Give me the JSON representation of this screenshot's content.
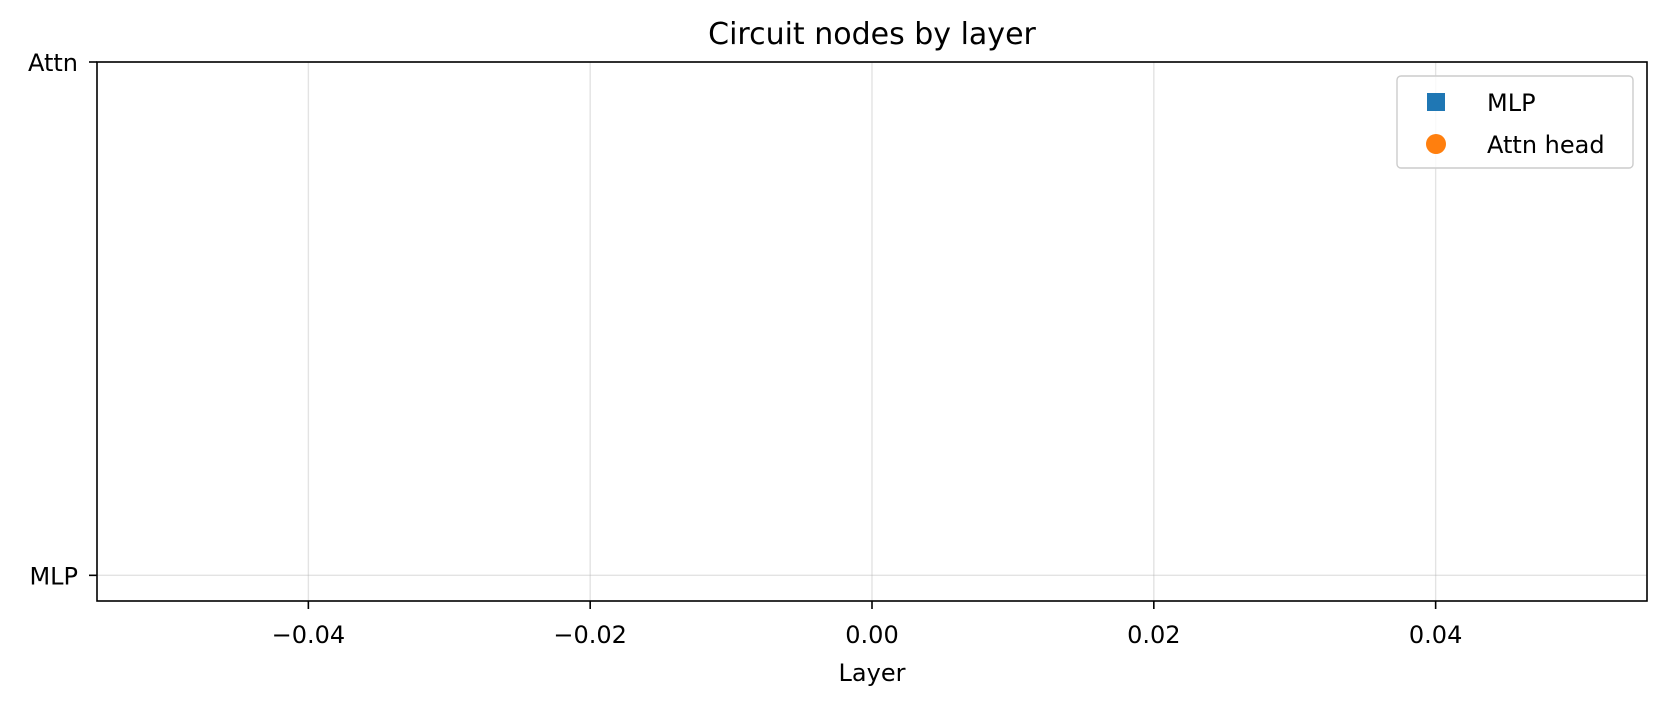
{
  "chart_data": {
    "type": "scatter",
    "title": "Circuit nodes by layer",
    "xlabel": "Layer",
    "ylabel": "",
    "xlim": [
      -0.055,
      0.055
    ],
    "ylim": [
      -0.05,
      1.0
    ],
    "x_ticks": [
      -0.04,
      -0.02,
      0.0,
      0.02,
      0.04
    ],
    "x_tick_labels": [
      "−0.04",
      "−0.02",
      "0.00",
      "0.02",
      "0.04"
    ],
    "y_ticks": [
      0,
      1
    ],
    "y_tick_labels": [
      "MLP",
      "Attn"
    ],
    "grid": true,
    "legend_position": "top-right",
    "series": [
      {
        "name": "MLP",
        "marker": "square",
        "color": "#1f77b4",
        "points": []
      },
      {
        "name": "Attn head",
        "marker": "circle",
        "color": "#ff7f0e",
        "points": []
      }
    ]
  }
}
